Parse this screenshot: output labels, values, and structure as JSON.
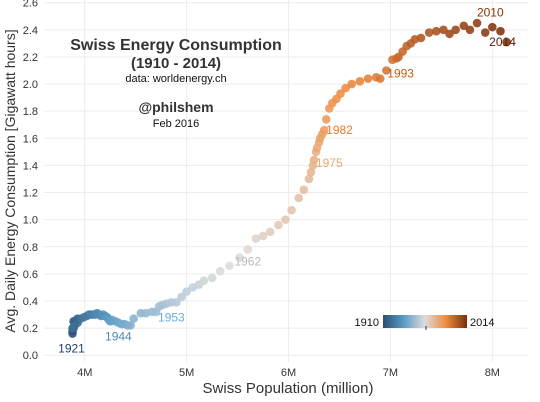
{
  "chart_data": {
    "type": "scatter",
    "title": "Swiss Energy Consumption",
    "subtitle": "(1910 - 2014)",
    "source": "data: worldenergy.ch",
    "author": "@philshem",
    "date": "Feb 2016",
    "xlabel": "Swiss Population (million)",
    "ylabel": "Avg. Daily Energy Consumption [Gigawatt hours]",
    "xlim": [
      3.6,
      8.35
    ],
    "ylim": [
      -0.05,
      2.62
    ],
    "x_ticks": [
      4,
      5,
      6,
      7,
      8
    ],
    "x_tick_labels": [
      "4M",
      "5M",
      "6M",
      "7M",
      "8M"
    ],
    "y_ticks": [
      0.0,
      0.2,
      0.4,
      0.6,
      0.8,
      1.0,
      1.2,
      1.4,
      1.6,
      1.8,
      2.0,
      2.2,
      2.4,
      2.6
    ],
    "y_tick_labels": [
      "0.0",
      "0.2",
      "0.4",
      "0.6",
      "0.8",
      "1.0",
      "1.2",
      "1.4",
      "1.6",
      "1.8",
      "2.0",
      "2.2",
      "2.4",
      "2.6"
    ],
    "grid": true,
    "colorbar": {
      "min_label": "1910",
      "max_label": "2014",
      "stops": [
        "#2a4f73",
        "#5b9cc7",
        "#dcdcdc",
        "#f08a3c",
        "#7a2e0b"
      ]
    },
    "year_labels": [
      {
        "year": "1921",
        "x": 3.87,
        "y": 0.02,
        "color": "#1c3f66"
      },
      {
        "year": "1944",
        "x": 4.33,
        "y": 0.11,
        "color": "#4f86b5"
      },
      {
        "year": "1953",
        "x": 4.85,
        "y": 0.25,
        "color": "#6aaed6"
      },
      {
        "year": "1962",
        "x": 5.6,
        "y": 0.66,
        "color": "#b9b9b9"
      },
      {
        "year": "1975",
        "x": 6.4,
        "y": 1.39,
        "color": "#f3a466"
      },
      {
        "year": "1982",
        "x": 6.5,
        "y": 1.63,
        "color": "#ec7b2a"
      },
      {
        "year": "1993",
        "x": 7.1,
        "y": 2.05,
        "color": "#cc5a12"
      },
      {
        "year": "2010",
        "x": 7.98,
        "y": 2.5,
        "color": "#8a3208"
      },
      {
        "year": "2014",
        "x": 8.1,
        "y": 2.28,
        "color": "#5a2208"
      }
    ],
    "points": [
      {
        "year": 1910,
        "x": 3.88,
        "y": 0.16
      },
      {
        "year": 1911,
        "x": 3.88,
        "y": 0.18
      },
      {
        "year": 1912,
        "x": 3.89,
        "y": 0.2
      },
      {
        "year": 1913,
        "x": 3.9,
        "y": 0.22
      },
      {
        "year": 1914,
        "x": 3.89,
        "y": 0.25
      },
      {
        "year": 1915,
        "x": 3.9,
        "y": 0.24
      },
      {
        "year": 1916,
        "x": 3.91,
        "y": 0.25
      },
      {
        "year": 1917,
        "x": 3.92,
        "y": 0.26
      },
      {
        "year": 1918,
        "x": 3.93,
        "y": 0.27
      },
      {
        "year": 1919,
        "x": 3.93,
        "y": 0.24
      },
      {
        "year": 1920,
        "x": 3.9,
        "y": 0.22
      },
      {
        "year": 1921,
        "x": 3.88,
        "y": 0.2
      },
      {
        "year": 1922,
        "x": 3.96,
        "y": 0.27
      },
      {
        "year": 1923,
        "x": 3.99,
        "y": 0.28
      },
      {
        "year": 1924,
        "x": 4.02,
        "y": 0.29
      },
      {
        "year": 1925,
        "x": 4.04,
        "y": 0.3
      },
      {
        "year": 1926,
        "x": 4.06,
        "y": 0.3
      },
      {
        "year": 1927,
        "x": 4.08,
        "y": 0.3
      },
      {
        "year": 1928,
        "x": 4.1,
        "y": 0.3
      },
      {
        "year": 1929,
        "x": 4.12,
        "y": 0.31
      },
      {
        "year": 1930,
        "x": 4.14,
        "y": 0.3
      },
      {
        "year": 1931,
        "x": 4.16,
        "y": 0.29
      },
      {
        "year": 1932,
        "x": 4.18,
        "y": 0.3
      },
      {
        "year": 1933,
        "x": 4.2,
        "y": 0.29
      },
      {
        "year": 1934,
        "x": 4.22,
        "y": 0.28
      },
      {
        "year": 1935,
        "x": 4.23,
        "y": 0.27
      },
      {
        "year": 1936,
        "x": 4.24,
        "y": 0.26
      },
      {
        "year": 1937,
        "x": 4.25,
        "y": 0.25
      },
      {
        "year": 1938,
        "x": 4.27,
        "y": 0.26
      },
      {
        "year": 1939,
        "x": 4.3,
        "y": 0.25
      },
      {
        "year": 1940,
        "x": 4.33,
        "y": 0.24
      },
      {
        "year": 1941,
        "x": 4.36,
        "y": 0.23
      },
      {
        "year": 1942,
        "x": 4.39,
        "y": 0.23
      },
      {
        "year": 1943,
        "x": 4.42,
        "y": 0.22
      },
      {
        "year": 1944,
        "x": 4.45,
        "y": 0.22
      },
      {
        "year": 1945,
        "x": 4.48,
        "y": 0.27
      },
      {
        "year": 1946,
        "x": 4.55,
        "y": 0.31
      },
      {
        "year": 1947,
        "x": 4.6,
        "y": 0.31
      },
      {
        "year": 1948,
        "x": 4.66,
        "y": 0.32
      },
      {
        "year": 1949,
        "x": 4.7,
        "y": 0.32
      },
      {
        "year": 1950,
        "x": 4.73,
        "y": 0.36
      },
      {
        "year": 1951,
        "x": 4.76,
        "y": 0.37
      },
      {
        "year": 1952,
        "x": 4.8,
        "y": 0.38
      },
      {
        "year": 1953,
        "x": 4.85,
        "y": 0.39
      },
      {
        "year": 1954,
        "x": 4.9,
        "y": 0.39
      },
      {
        "year": 1955,
        "x": 4.95,
        "y": 0.43
      },
      {
        "year": 1956,
        "x": 5.0,
        "y": 0.47
      },
      {
        "year": 1957,
        "x": 5.06,
        "y": 0.5
      },
      {
        "year": 1958,
        "x": 5.12,
        "y": 0.52
      },
      {
        "year": 1959,
        "x": 5.17,
        "y": 0.55
      },
      {
        "year": 1960,
        "x": 5.25,
        "y": 0.57
      },
      {
        "year": 1961,
        "x": 5.33,
        "y": 0.62
      },
      {
        "year": 1962,
        "x": 5.42,
        "y": 0.66
      },
      {
        "year": 1963,
        "x": 5.52,
        "y": 0.72
      },
      {
        "year": 1964,
        "x": 5.6,
        "y": 0.78
      },
      {
        "year": 1965,
        "x": 5.68,
        "y": 0.86
      },
      {
        "year": 1966,
        "x": 5.75,
        "y": 0.88
      },
      {
        "year": 1967,
        "x": 5.82,
        "y": 0.91
      },
      {
        "year": 1968,
        "x": 5.9,
        "y": 0.96
      },
      {
        "year": 1969,
        "x": 5.97,
        "y": 1.0
      },
      {
        "year": 1970,
        "x": 6.03,
        "y": 1.07
      },
      {
        "year": 1971,
        "x": 6.1,
        "y": 1.16
      },
      {
        "year": 1972,
        "x": 6.15,
        "y": 1.22
      },
      {
        "year": 1973,
        "x": 6.2,
        "y": 1.3
      },
      {
        "year": 1974,
        "x": 6.22,
        "y": 1.35
      },
      {
        "year": 1975,
        "x": 6.24,
        "y": 1.4
      },
      {
        "year": 1976,
        "x": 6.25,
        "y": 1.44
      },
      {
        "year": 1977,
        "x": 6.27,
        "y": 1.5
      },
      {
        "year": 1978,
        "x": 6.28,
        "y": 1.53
      },
      {
        "year": 1979,
        "x": 6.3,
        "y": 1.57
      },
      {
        "year": 1980,
        "x": 6.31,
        "y": 1.6
      },
      {
        "year": 1981,
        "x": 6.33,
        "y": 1.63
      },
      {
        "year": 1982,
        "x": 6.35,
        "y": 1.66
      },
      {
        "year": 1983,
        "x": 6.37,
        "y": 1.74
      },
      {
        "year": 1984,
        "x": 6.4,
        "y": 1.82
      },
      {
        "year": 1985,
        "x": 6.43,
        "y": 1.86
      },
      {
        "year": 1986,
        "x": 6.47,
        "y": 1.89
      },
      {
        "year": 1987,
        "x": 6.51,
        "y": 1.93
      },
      {
        "year": 1988,
        "x": 6.56,
        "y": 1.97
      },
      {
        "year": 1989,
        "x": 6.62,
        "y": 2.0
      },
      {
        "year": 1990,
        "x": 6.7,
        "y": 2.02
      },
      {
        "year": 1991,
        "x": 6.78,
        "y": 2.04
      },
      {
        "year": 1992,
        "x": 6.86,
        "y": 2.05
      },
      {
        "year": 1993,
        "x": 6.9,
        "y": 2.04
      },
      {
        "year": 1994,
        "x": 6.96,
        "y": 2.1
      },
      {
        "year": 1995,
        "x": 7.02,
        "y": 2.18
      },
      {
        "year": 1996,
        "x": 7.06,
        "y": 2.19
      },
      {
        "year": 1997,
        "x": 7.08,
        "y": 2.2
      },
      {
        "year": 1998,
        "x": 7.12,
        "y": 2.24
      },
      {
        "year": 1999,
        "x": 7.16,
        "y": 2.28
      },
      {
        "year": 2000,
        "x": 7.2,
        "y": 2.3
      },
      {
        "year": 2001,
        "x": 7.24,
        "y": 2.33
      },
      {
        "year": 2002,
        "x": 7.3,
        "y": 2.34
      },
      {
        "year": 2003,
        "x": 7.38,
        "y": 2.38
      },
      {
        "year": 2004,
        "x": 7.45,
        "y": 2.39
      },
      {
        "year": 2005,
        "x": 7.52,
        "y": 2.4
      },
      {
        "year": 2006,
        "x": 7.58,
        "y": 2.37
      },
      {
        "year": 2007,
        "x": 7.64,
        "y": 2.4
      },
      {
        "year": 2008,
        "x": 7.72,
        "y": 2.43
      },
      {
        "year": 2009,
        "x": 7.78,
        "y": 2.4
      },
      {
        "year": 2010,
        "x": 7.85,
        "y": 2.45
      },
      {
        "year": 2011,
        "x": 7.93,
        "y": 2.38
      },
      {
        "year": 2012,
        "x": 8.0,
        "y": 2.42
      },
      {
        "year": 2013,
        "x": 8.08,
        "y": 2.39
      },
      {
        "year": 2014,
        "x": 8.14,
        "y": 2.31
      }
    ]
  }
}
